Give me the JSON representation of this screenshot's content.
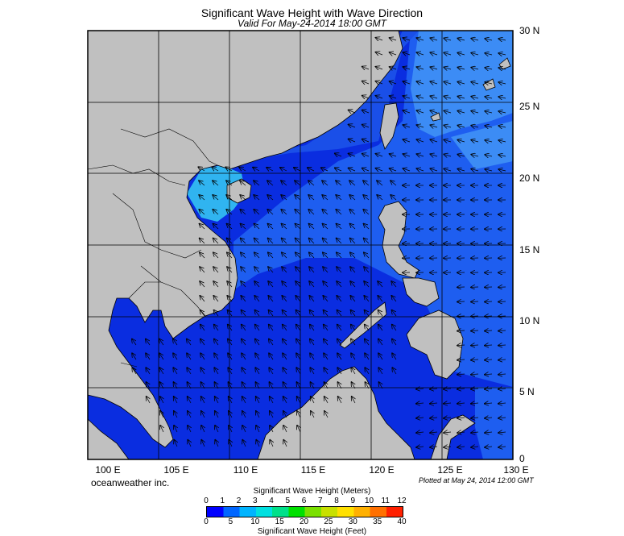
{
  "title": "Significant Wave Height with Wave Direction",
  "subtitle": "Valid For May-24-2014 18:00 GMT",
  "credit": "oceanweather inc.",
  "plotted": "Plotted at May 24, 2014 12:00 GMT",
  "lat_labels": [
    "30 N",
    "25 N",
    "20 N",
    "15 N",
    "10 N",
    "5 N",
    "0"
  ],
  "lon_labels": [
    "100 E",
    "105 E",
    "110 E",
    "115 E",
    "120 E",
    "125 E",
    "130 E"
  ],
  "colorbar": {
    "title_meters": "Significant Wave Height (Meters)",
    "title_feet": "Significant Wave Height (Feet)",
    "meter_ticks": [
      "0",
      "1",
      "2",
      "3",
      "4",
      "5",
      "6",
      "7",
      "8",
      "9",
      "10",
      "11",
      "12"
    ],
    "feet_ticks": [
      "0",
      "5",
      "10",
      "15",
      "20",
      "25",
      "30",
      "35",
      "40"
    ],
    "colors": [
      "#0000ff",
      "#0066ff",
      "#00b4ff",
      "#00e0e0",
      "#00e08a",
      "#00e000",
      "#7ae000",
      "#c8e000",
      "#ffe000",
      "#ffb000",
      "#ff7000",
      "#ff2000"
    ]
  },
  "colors": {
    "land": "#c0c0c0",
    "ocean_deep": "#0a2de0",
    "ocean_mid": "#1e5ef0",
    "ocean_light": "#3c8cf5",
    "ocean_cyan": "#30b4f0",
    "arrow": "#000000"
  }
}
